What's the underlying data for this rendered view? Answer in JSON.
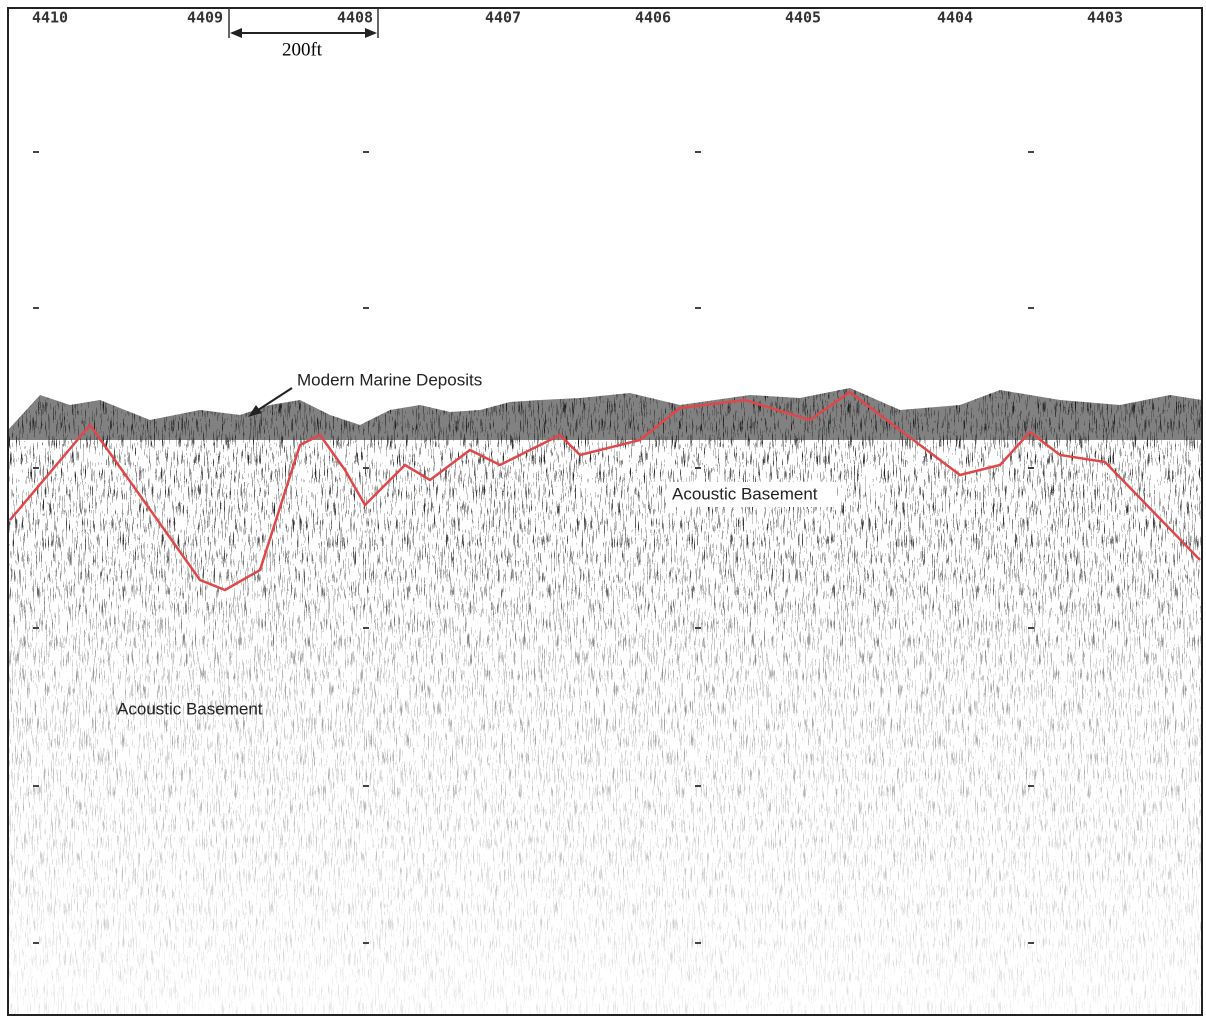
{
  "profile": {
    "shotpoints": [
      "4410",
      "4409",
      "4408",
      "4407",
      "4406",
      "4405",
      "4404",
      "4403"
    ],
    "scale_label": "200ft",
    "annotations": {
      "deposits": "Modern Marine Deposits",
      "basement_right": "Acoustic Basement",
      "basement_left": "Acoustic Basement"
    }
  }
}
